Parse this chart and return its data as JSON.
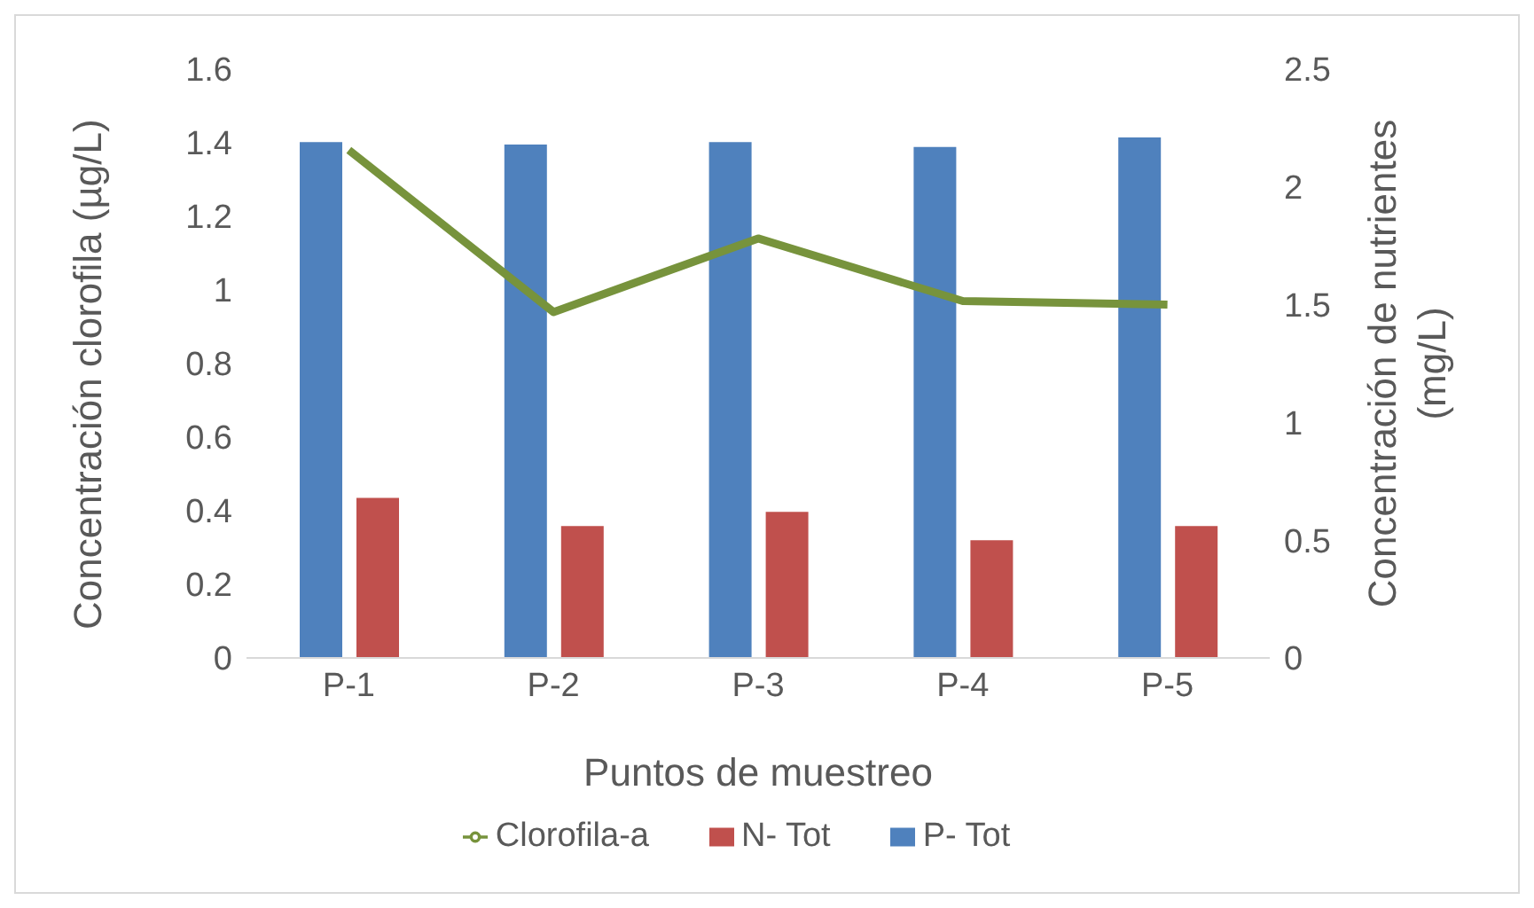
{
  "chart_data": {
    "type": "bar",
    "categories": [
      "P-1",
      "P-2",
      "P-3",
      "P-4",
      "P-5"
    ],
    "xlabel": "Puntos de muestreo",
    "ylabel": "Concentración clorofila (µg/L)",
    "y2label": "Concentración de nutrientes (mg/L)",
    "series": [
      {
        "name": "P- Tot",
        "color": "#4f81bd",
        "axis": "y2",
        "values": [
          2.19,
          2.18,
          2.19,
          2.17,
          2.21
        ]
      },
      {
        "name": "N- Tot",
        "color": "#c0504d",
        "axis": "y2",
        "values": [
          0.68,
          0.56,
          0.62,
          0.5,
          0.56
        ]
      },
      {
        "name": "Clorofila-a",
        "color": "#77933c",
        "type": "line",
        "axis": "y",
        "values": [
          1.38,
          0.94,
          1.14,
          0.97,
          0.96
        ]
      }
    ],
    "ylim": [
      0,
      1.6
    ],
    "yticks": [
      0,
      0.2,
      0.4,
      0.6,
      0.8,
      1,
      1.2,
      1.4,
      1.6
    ],
    "y2lim": [
      0,
      2.5
    ],
    "y2ticks": [
      0,
      0.5,
      1,
      1.5,
      2,
      2.5
    ],
    "legend": "bottom",
    "marker": "none",
    "grid": false
  }
}
